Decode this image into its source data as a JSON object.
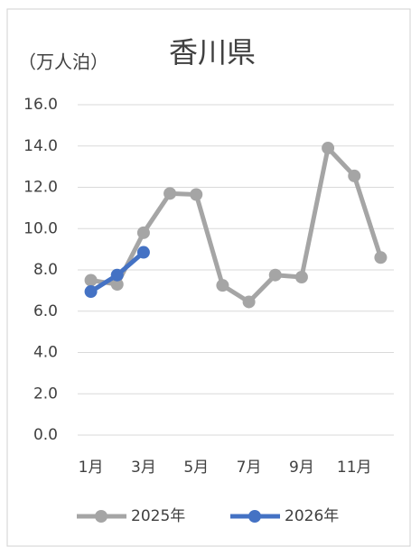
{
  "chart_data": {
    "type": "line",
    "title": "香川県",
    "y_label": "（万人泊）",
    "categories": [
      "1月",
      null,
      "3月",
      null,
      "5月",
      null,
      "7月",
      null,
      "9月",
      null,
      "11月",
      null
    ],
    "series": [
      {
        "name": "2025年",
        "color": "#a5a5a5",
        "values": [
          7.5,
          7.3,
          9.8,
          11.7,
          11.65,
          7.25,
          6.45,
          7.75,
          7.65,
          13.9,
          12.55,
          8.6
        ]
      },
      {
        "name": "2026年",
        "color": "#4472c4",
        "values": [
          6.95,
          7.75,
          8.85,
          null,
          null,
          null,
          null,
          null,
          null,
          null,
          null,
          null
        ]
      }
    ],
    "ylim": [
      0,
      16
    ],
    "yticks": [
      {
        "value": 0,
        "label": "0.0"
      },
      {
        "value": 2,
        "label": "2.0"
      },
      {
        "value": 4,
        "label": "4.0"
      },
      {
        "value": 6,
        "label": "6.0"
      },
      {
        "value": 8,
        "label": "8.0"
      },
      {
        "value": 10,
        "label": "10.0"
      },
      {
        "value": 12,
        "label": "12.0"
      },
      {
        "value": 14,
        "label": "14.0"
      },
      {
        "value": 16,
        "label": "16.0"
      }
    ],
    "grid": true,
    "legend": "bottom"
  }
}
